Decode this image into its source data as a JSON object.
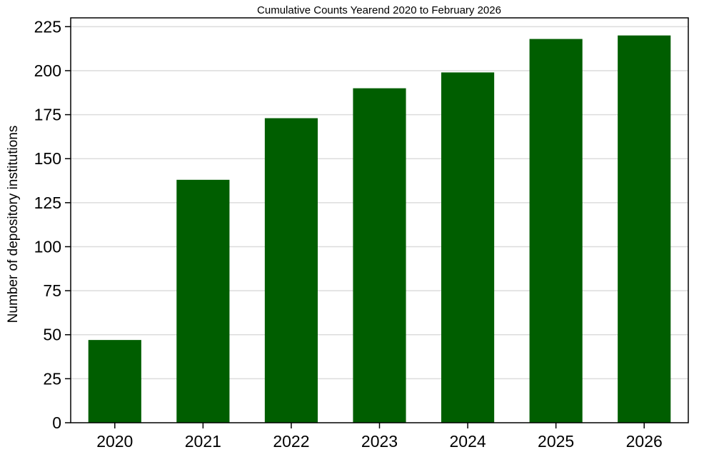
{
  "chart_data": {
    "type": "bar",
    "title": "Cumulative Counts Yearend 2020 to February 2026",
    "xlabel": "",
    "ylabel": "Number of depository institutions",
    "categories": [
      "2020",
      "2021",
      "2022",
      "2023",
      "2024",
      "2025",
      "2026"
    ],
    "values": [
      47,
      138,
      173,
      190,
      199,
      218,
      220
    ],
    "ylim": [
      0,
      230
    ],
    "yticks": [
      0,
      25,
      50,
      75,
      100,
      125,
      150,
      175,
      200,
      225
    ],
    "grid": true,
    "legend": "none",
    "colors": {
      "bar": "#005e00",
      "grid": "#dcdcdc",
      "axis": "#000000"
    }
  }
}
